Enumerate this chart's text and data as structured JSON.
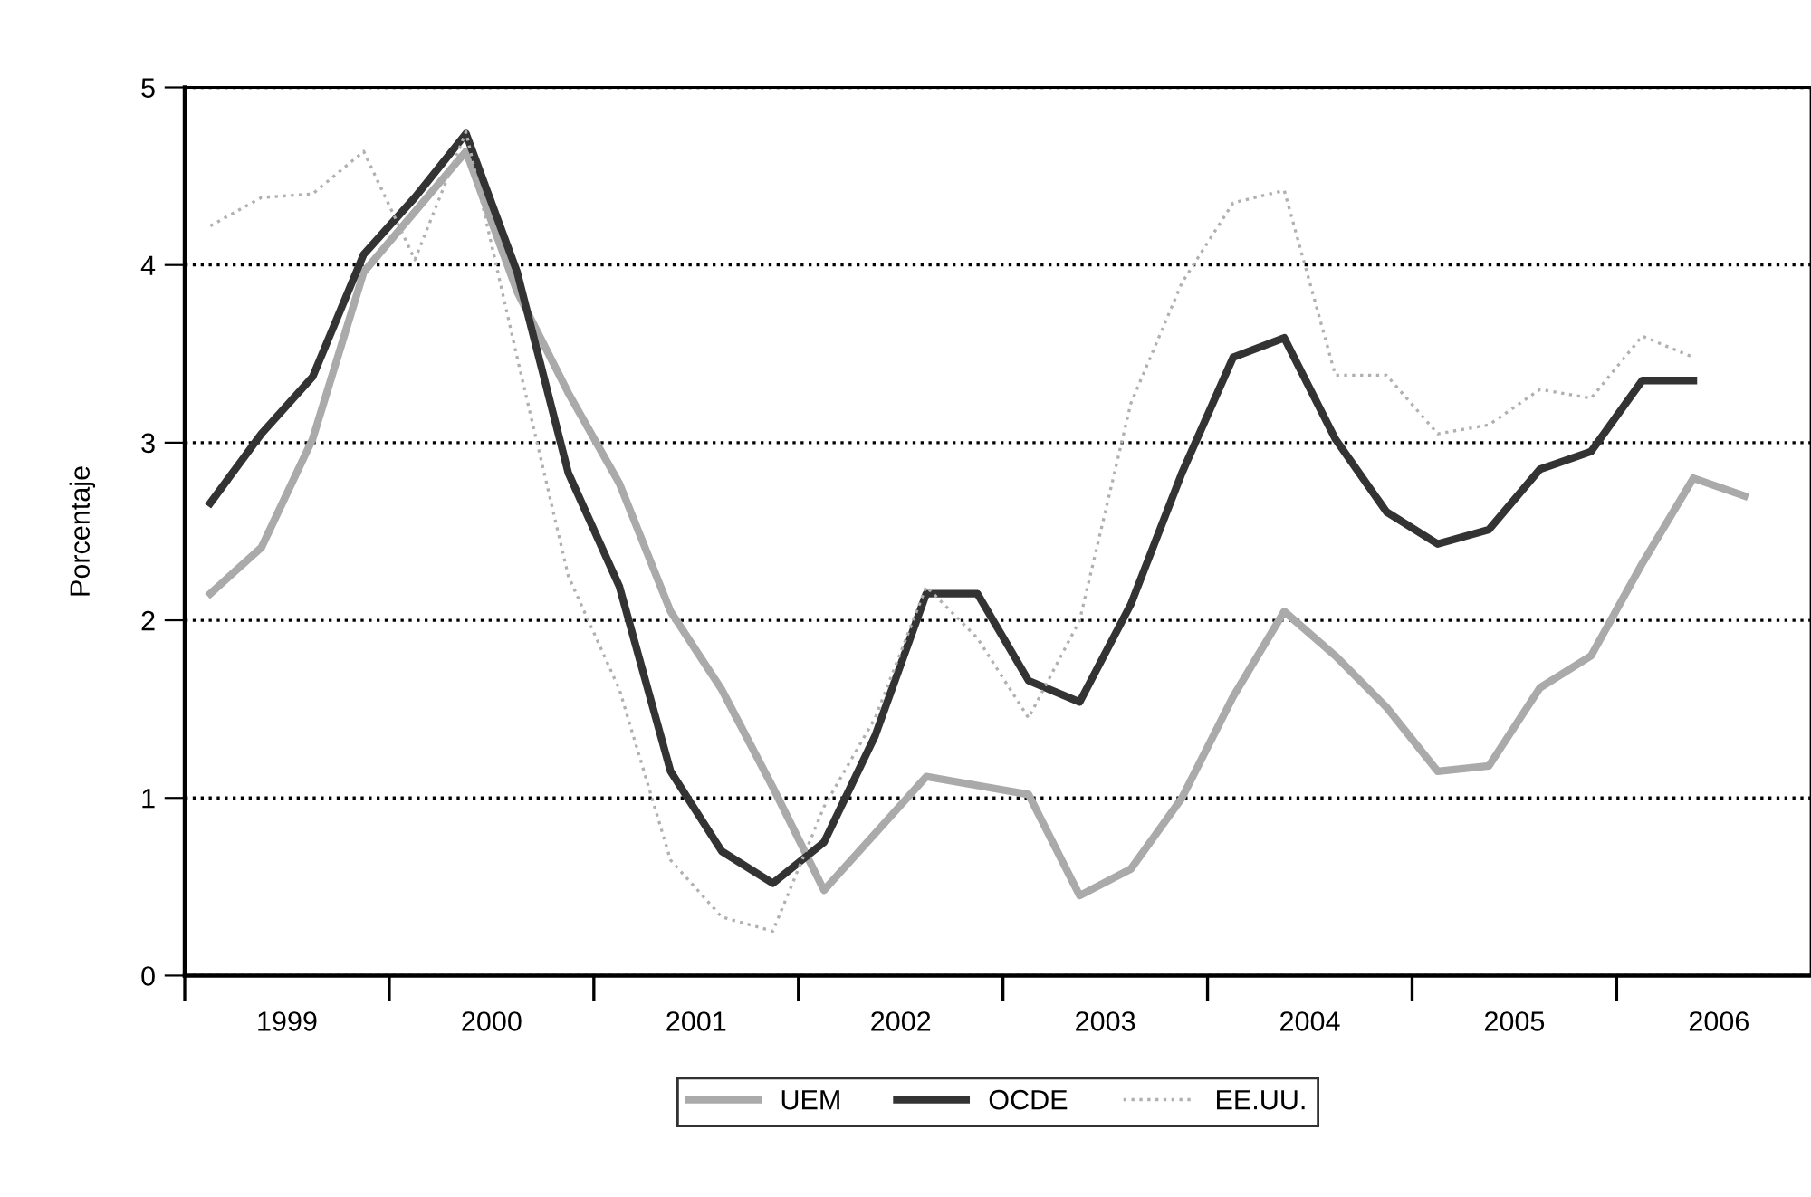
{
  "chart_data": {
    "type": "line",
    "ylabel": "Porcentaje",
    "x": [
      1999.125,
      1999.375,
      1999.625,
      1999.875,
      2000.125,
      2000.375,
      2000.625,
      2000.875,
      2001.125,
      2001.375,
      2001.625,
      2001.875,
      2002.125,
      2002.375,
      2002.625,
      2002.875,
      2003.125,
      2003.375,
      2003.625,
      2003.875,
      2004.125,
      2004.375,
      2004.625,
      2004.875,
      2005.125,
      2005.375,
      2005.625,
      2005.875,
      2006.125,
      2006.375,
      2006.625
    ],
    "series": [
      {
        "name": "UEM",
        "color": "#aaaaaa",
        "line_style": "solid",
        "values": [
          2.15,
          2.41,
          3.02,
          3.96,
          4.3,
          4.64,
          3.85,
          3.28,
          2.77,
          2.05,
          1.61,
          1.06,
          0.48,
          0.8,
          1.12,
          1.07,
          1.02,
          0.45,
          0.6,
          1.0,
          1.57,
          2.05,
          1.8,
          1.51,
          1.15,
          1.18,
          1.62,
          1.8,
          2.32,
          2.8,
          2.7
        ]
      },
      {
        "name": "OCDE",
        "color": "#333333",
        "line_style": "solid",
        "values": [
          2.66,
          3.05,
          3.37,
          4.06,
          4.38,
          4.74,
          3.96,
          2.83,
          2.19,
          1.15,
          0.7,
          0.52,
          0.75,
          1.35,
          2.15,
          2.15,
          1.66,
          1.54,
          2.09,
          2.83,
          3.48,
          3.59,
          3.02,
          2.61,
          2.43,
          2.51,
          2.85,
          2.95,
          3.35,
          3.35,
          null
        ]
      },
      {
        "name": "EE.UU.",
        "color": "#b0b0b0",
        "line_style": "dotted",
        "values": [
          4.22,
          4.38,
          4.4,
          4.64,
          4.03,
          4.75,
          3.48,
          2.25,
          1.61,
          0.65,
          0.33,
          0.25,
          0.95,
          1.45,
          2.19,
          1.9,
          1.45,
          2.0,
          3.22,
          3.9,
          4.35,
          4.42,
          3.38,
          3.38,
          3.05,
          3.1,
          3.3,
          3.25,
          3.6,
          3.48,
          null
        ]
      }
    ],
    "xlim": [
      1999,
      2006.95
    ],
    "xticks": [
      {
        "value": 1999,
        "label": null
      },
      {
        "value": 2000,
        "label": null
      },
      {
        "value": 2001,
        "label": null
      },
      {
        "value": 2002,
        "label": null
      },
      {
        "value": 2003,
        "label": null
      },
      {
        "value": 2004,
        "label": null
      },
      {
        "value": 2005,
        "label": null
      },
      {
        "value": 2006,
        "label": null
      },
      {
        "value": 1999.5,
        "label": "1999"
      },
      {
        "value": 2000.5,
        "label": "2000"
      },
      {
        "value": 2001.5,
        "label": "2001"
      },
      {
        "value": 2002.5,
        "label": "2002"
      },
      {
        "value": 2003.5,
        "label": "2003"
      },
      {
        "value": 2004.5,
        "label": "2004"
      },
      {
        "value": 2005.5,
        "label": "2005"
      },
      {
        "value": 2006.5,
        "label": "2006"
      }
    ],
    "ylim": [
      0,
      5
    ],
    "yticks": [
      0,
      1,
      2,
      3,
      4,
      5
    ],
    "grid": "y",
    "legend": "bottom"
  }
}
